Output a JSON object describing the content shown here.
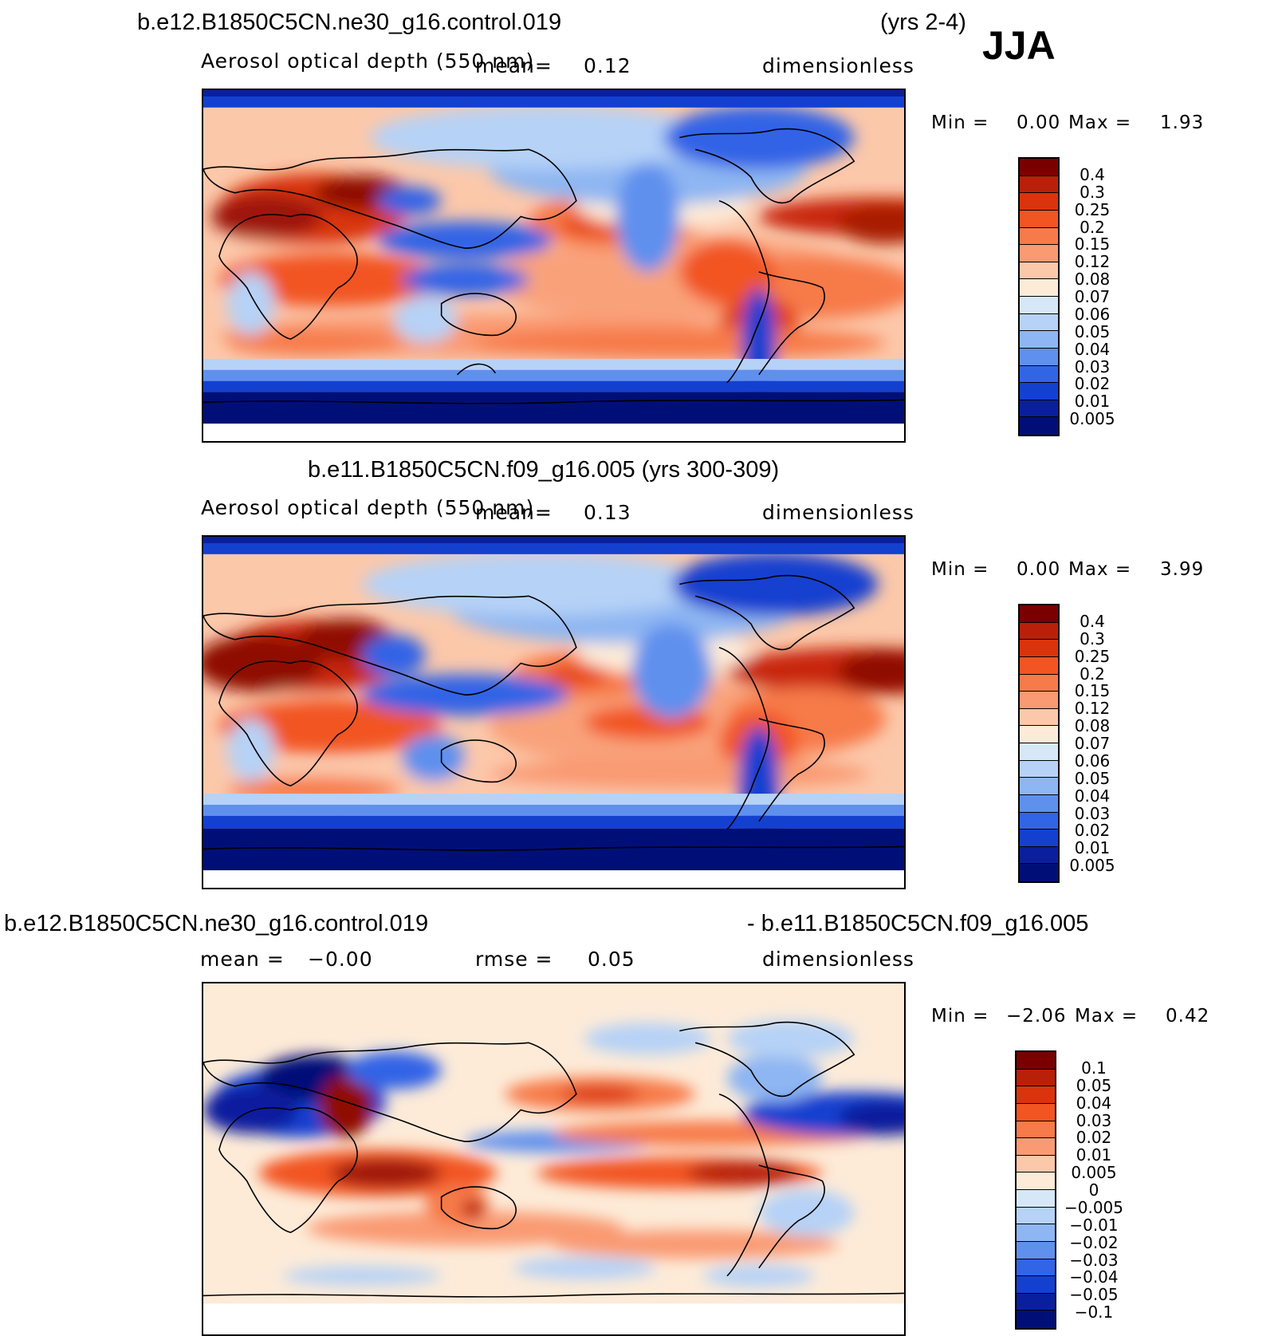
{
  "season": "JJA",
  "panels": [
    {
      "id": "p1",
      "header": "b.e12.B1850C5CN.ne30_g16.control.019",
      "years": "(yrs 2-4)",
      "variable": "Aerosol optical depth (550 nm)",
      "mean_label": "mean=",
      "mean_value": "0.12",
      "units": "dimensionless",
      "min_label": "Min =",
      "min_value": "0.00",
      "max_label": "Max =",
      "max_value": "1.93"
    },
    {
      "id": "p2",
      "header": "b.e11.B1850C5CN.f09_g16.005 (yrs 300-309)",
      "variable": "Aerosol optical depth (550 nm)",
      "mean_label": "mean=",
      "mean_value": "0.13",
      "units": "dimensionless",
      "min_label": "Min =",
      "min_value": "0.00",
      "max_label": "Max =",
      "max_value": "3.99"
    },
    {
      "id": "p3",
      "header_left": "b.e12.B1850C5CN.ne30_g16.control.019",
      "header_right": "- b.e11.B1850C5CN.f09_g16.005",
      "mean_label": "mean =",
      "mean_value": "−0.00",
      "rmse_label": "rmse =",
      "rmse_value": "0.05",
      "units": "dimensionless",
      "min_label": "Min =",
      "min_value": "−2.06",
      "max_label": "Max =",
      "max_value": "0.42"
    }
  ],
  "colorbar_abs": {
    "labels": [
      "0.4",
      "0.3",
      "0.25",
      "0.2",
      "0.15",
      "0.12",
      "0.08",
      "0.07",
      "0.06",
      "0.05",
      "0.04",
      "0.03",
      "0.02",
      "0.01",
      "0.005"
    ],
    "colors": [
      "#7a0000",
      "#b8200a",
      "#d9340b",
      "#f25522",
      "#f77a4a",
      "#f99a72",
      "#fcc8aa",
      "#fdebd8",
      "#d6e8f8",
      "#b6d2f6",
      "#8eb6f2",
      "#5f90ee",
      "#3264e6",
      "#1440d0",
      "#0a1f9e",
      "#000f78"
    ]
  },
  "colorbar_diff": {
    "labels": [
      "0.1",
      "0.05",
      "0.04",
      "0.03",
      "0.02",
      "0.01",
      "0.005",
      "0",
      "−0.005",
      "−0.01",
      "−0.02",
      "−0.03",
      "−0.04",
      "−0.05",
      "−0.1"
    ],
    "colors": [
      "#7a0000",
      "#b8200a",
      "#d9340b",
      "#f25522",
      "#f77a4a",
      "#f99a72",
      "#fcc8aa",
      "#fdebd8",
      "#d6e8f8",
      "#b6d2f6",
      "#8eb6f2",
      "#5f90ee",
      "#3264e6",
      "#1440d0",
      "#0a1f9e",
      "#000f78"
    ]
  }
}
